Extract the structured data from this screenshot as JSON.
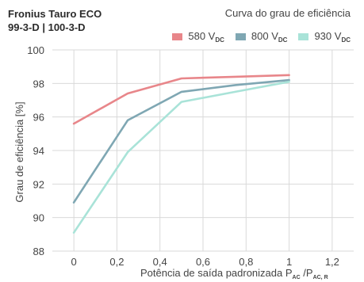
{
  "chart_data": {
    "type": "line",
    "title_lines": [
      "Fronius Tauro ECO",
      "99-3-D | 100-3-D"
    ],
    "subtitle": "Curva do grau de eficiência",
    "ylabel": "Grau de eficiência [%]",
    "xlabel": {
      "text": "Potência de saída padronizada P",
      "sub1": "AC",
      "mid": " /P",
      "sub2": "AC, R"
    },
    "x_ticks": [
      "0",
      "0,2",
      "0,4",
      "0,6",
      "0,8",
      "1",
      "1,2"
    ],
    "y_ticks": [
      "88",
      "90",
      "92",
      "94",
      "96",
      "98",
      "100"
    ],
    "xlim": [
      -0.1,
      1.3
    ],
    "ylim": [
      88,
      100
    ],
    "grid": true,
    "legend_position": "top-right",
    "series": [
      {
        "name": "580 V",
        "sub": "DC",
        "color": "#e8868a",
        "x": [
          0,
          0.25,
          0.5,
          0.75,
          1.0
        ],
        "values": [
          95.6,
          97.4,
          98.3,
          98.4,
          98.5
        ]
      },
      {
        "name": "800 V",
        "sub": "DC",
        "color": "#7fa7b3",
        "x": [
          0,
          0.25,
          0.5,
          0.75,
          1.0
        ],
        "values": [
          90.9,
          95.8,
          97.5,
          97.9,
          98.2
        ]
      },
      {
        "name": "930 V",
        "sub": "DC",
        "color": "#a9e3d8",
        "x": [
          0,
          0.25,
          0.5,
          0.75,
          1.0
        ],
        "values": [
          89.1,
          93.9,
          96.9,
          97.5,
          98.1
        ]
      }
    ]
  }
}
